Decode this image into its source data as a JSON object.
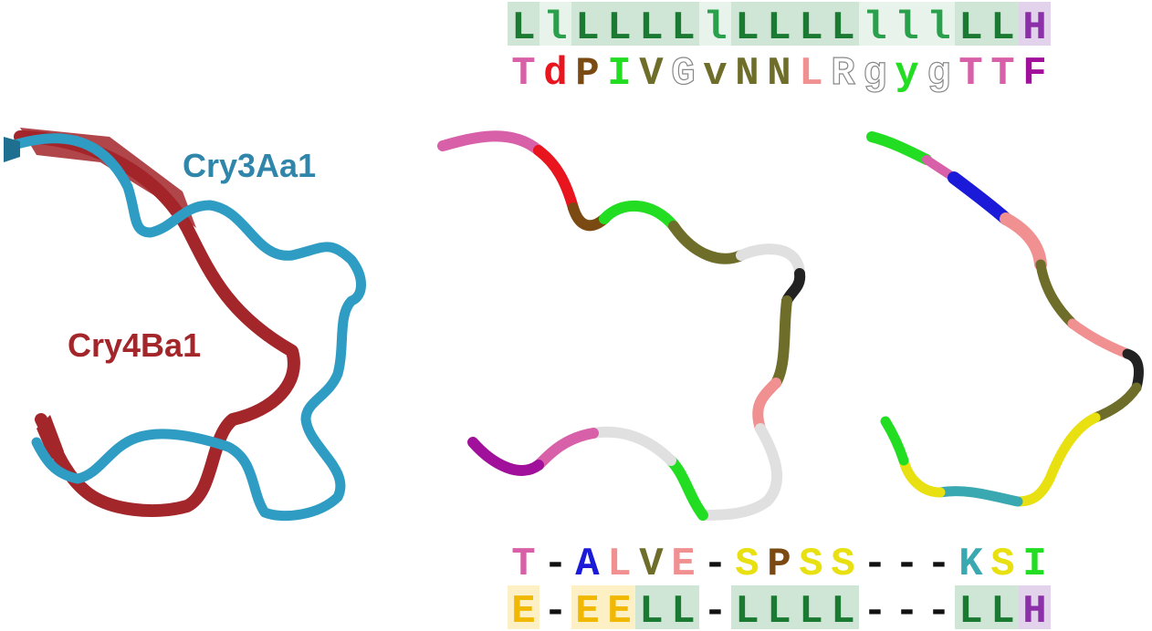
{
  "labels": {
    "cry3": "Cry3Aa1",
    "cry4": "Cry4Ba1"
  },
  "colors": {
    "cry3": "#2f9cc4",
    "cry4": "#a3262a",
    "L": "#1a7a32",
    "l": "#2aa04c",
    "H": "#8b30a8",
    "E": "#f0b800",
    "bgL": "#cfe6d6",
    "bgl": "#e8f3eb",
    "bgH": "#e2d2ec",
    "bgE": "#fdf0c4"
  },
  "top_structure": [
    "L",
    "l",
    "L",
    "L",
    "L",
    "L",
    "l",
    "L",
    "L",
    "L",
    "L",
    "l",
    "l",
    "l",
    "L",
    "L",
    "H"
  ],
  "top_sequence": [
    {
      "ch": "T",
      "color": "#d860a8"
    },
    {
      "ch": "d",
      "color": "#e8141e"
    },
    {
      "ch": "P",
      "color": "#7a4a12"
    },
    {
      "ch": "I",
      "color": "#22dd22"
    },
    {
      "ch": "V",
      "color": "#6e6e2a"
    },
    {
      "ch": "G",
      "color": "#ffffff",
      "hollow": true
    },
    {
      "ch": "v",
      "color": "#6e6e2a"
    },
    {
      "ch": "N",
      "color": "#6e6e2a"
    },
    {
      "ch": "N",
      "color": "#6e6e2a"
    },
    {
      "ch": "L",
      "color": "#f09090"
    },
    {
      "ch": "R",
      "color": "#ffffff",
      "hollow": true
    },
    {
      "ch": "g",
      "color": "#ffffff",
      "hollow": true
    },
    {
      "ch": "y",
      "color": "#22dd22"
    },
    {
      "ch": "g",
      "color": "#ffffff",
      "hollow": true
    },
    {
      "ch": "T",
      "color": "#d860a8"
    },
    {
      "ch": "T",
      "color": "#d860a8"
    },
    {
      "ch": "F",
      "color": "#a0109a"
    }
  ],
  "bottom_sequence": [
    {
      "ch": "T",
      "color": "#d860a8"
    },
    {
      "ch": "-",
      "color": "#111111"
    },
    {
      "ch": "A",
      "color": "#1a1ad8"
    },
    {
      "ch": "L",
      "color": "#f09090"
    },
    {
      "ch": "V",
      "color": "#6e6e2a"
    },
    {
      "ch": "E",
      "color": "#f09090"
    },
    {
      "ch": "-",
      "color": "#111111"
    },
    {
      "ch": "S",
      "color": "#e8e010"
    },
    {
      "ch": "P",
      "color": "#7a4a12"
    },
    {
      "ch": "S",
      "color": "#e8e010"
    },
    {
      "ch": "S",
      "color": "#e8e010"
    },
    {
      "ch": "-",
      "color": "#111111"
    },
    {
      "ch": "-",
      "color": "#111111"
    },
    {
      "ch": "-",
      "color": "#111111"
    },
    {
      "ch": "K",
      "color": "#3aa8b0"
    },
    {
      "ch": "S",
      "color": "#e8e010"
    },
    {
      "ch": "I",
      "color": "#22dd22"
    }
  ],
  "bottom_structure": [
    "E",
    "-",
    "E",
    "E",
    "L",
    "L",
    "-",
    "L",
    "L",
    "L",
    "L",
    "-",
    "-",
    "-",
    "L",
    "L",
    "H"
  ]
}
